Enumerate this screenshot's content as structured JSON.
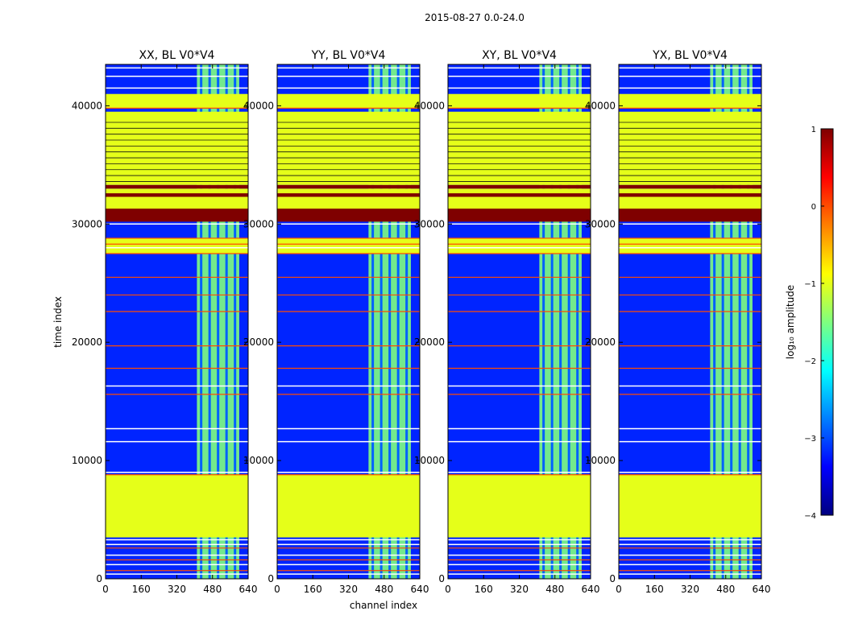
{
  "figure": {
    "suptitle": "2015-08-27 0.0-24.0",
    "xlabel": "channel index",
    "ylabel": "time index"
  },
  "colormap": {
    "name": "jet",
    "stops": [
      "#00007f",
      "#0000ff",
      "#007fff",
      "#00ffff",
      "#7fff7f",
      "#ffff00",
      "#ff7f00",
      "#ff0000",
      "#7f0000"
    ]
  },
  "colorbar": {
    "label": "log₁₀ amplitude",
    "min": -4,
    "max": 1,
    "ticks": [
      "1",
      "0",
      "−1",
      "−2",
      "−3",
      "−4"
    ],
    "tick_values": [
      1,
      0,
      -1,
      -2,
      -3,
      -4
    ]
  },
  "chart_data": {
    "type": "heatmap",
    "xlim": [
      0,
      640
    ],
    "ylim": [
      0,
      43500
    ],
    "xticks": [
      "0",
      "160",
      "320",
      "480",
      "640"
    ],
    "xtick_values": [
      0,
      160,
      320,
      480,
      640
    ],
    "yticks": [
      "0",
      "10000",
      "20000",
      "30000",
      "40000"
    ],
    "ytick_values": [
      0,
      10000,
      20000,
      30000,
      40000
    ],
    "panels": [
      {
        "title": "XX, BL V0*V4"
      },
      {
        "title": "YY, BL V0*V4"
      },
      {
        "title": "XY, BL V0*V4"
      },
      {
        "title": "YX, BL V0*V4"
      }
    ],
    "background_log10": -3.2,
    "rfi_channel_range": [
      410,
      600
    ],
    "rfi_log10": -1.5,
    "flagged_time_ranges_log10": [
      {
        "t0": 3500,
        "t1": 8800,
        "v": -1.0
      },
      {
        "t0": 31000,
        "t1": 33000,
        "v": -1.0
      },
      {
        "t0": 33300,
        "t1": 39500,
        "v": -1.0
      },
      {
        "t0": 39800,
        "t1": 41000,
        "v": -1.0
      },
      {
        "t0": 27500,
        "t1": 28800,
        "v": -1.0
      }
    ],
    "saturated_time_ranges_log10": [
      {
        "t0": 30200,
        "t1": 31300,
        "v": 1.0
      },
      {
        "t0": 32300,
        "t1": 32600,
        "v": 1.0
      },
      {
        "t0": 33000,
        "t1": 33300,
        "v": 1.0
      }
    ],
    "orange_lines_time": [
      700,
      1600,
      2600,
      8800,
      15600,
      17800,
      19700,
      22600,
      24000,
      25500,
      27500,
      28300,
      28800,
      39800
    ],
    "white_lines_time": [
      400,
      1200,
      2000,
      2900,
      3300,
      9000,
      11600,
      12700,
      16300,
      28000,
      30000,
      41500,
      42500,
      43200
    ]
  }
}
